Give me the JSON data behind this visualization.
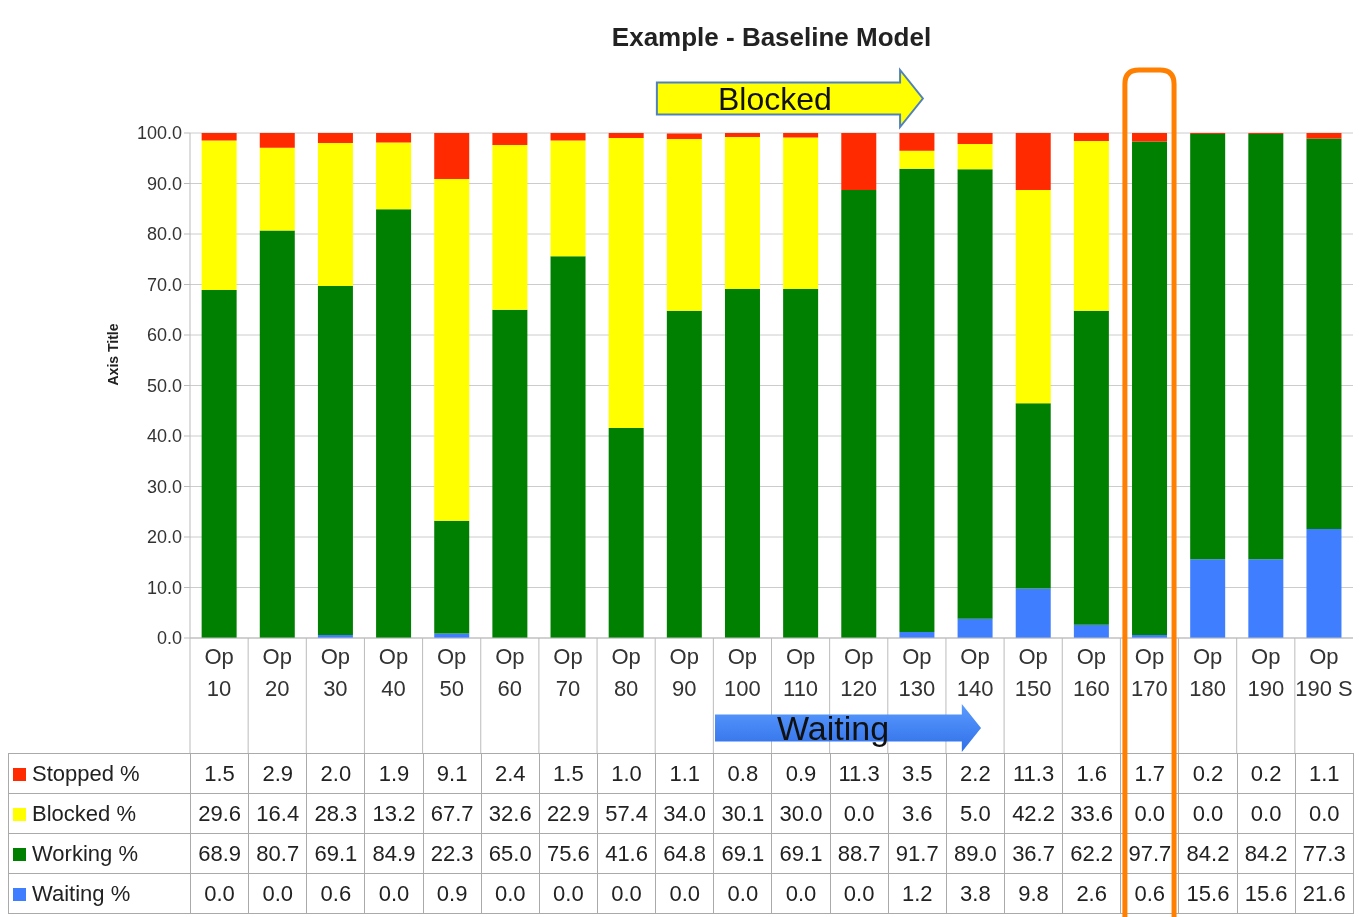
{
  "chart_data": {
    "type": "bar",
    "title": "Example - Baseline Model",
    "ylabel": "Axis Title",
    "stacked": true,
    "grid": "y",
    "legend": "bottom",
    "data_labels": true,
    "categories": [
      "Op 10",
      "Op 20",
      "Op 30",
      "Op 40",
      "Op 50",
      "Op 60",
      "Op 70",
      "Op 80",
      "Op 90",
      "Op 100",
      "Op 110",
      "Op 120",
      "Op 130",
      "Op 140",
      "Op 150",
      "Op 160",
      "Op 170",
      "Op 180",
      "Op 190",
      "Op 190 S"
    ],
    "ylim": [
      0,
      100
    ],
    "yticks": [
      {
        "value": 0,
        "label": "0.0"
      },
      {
        "value": 10,
        "label": "10.0"
      },
      {
        "value": 20,
        "label": "20.0"
      },
      {
        "value": 30,
        "label": "30.0"
      },
      {
        "value": 40,
        "label": "40.0"
      },
      {
        "value": 50,
        "label": "50.0"
      },
      {
        "value": 60,
        "label": "60.0"
      },
      {
        "value": 70,
        "label": "70.0"
      },
      {
        "value": 80,
        "label": "80.0"
      },
      {
        "value": 90,
        "label": "90.0"
      },
      {
        "value": 100,
        "label": "100.0"
      }
    ],
    "series": [
      {
        "name": "Waiting %",
        "color": "#3f7fff",
        "values": [
          0.0,
          0.0,
          0.6,
          0.0,
          0.9,
          0.0,
          0.0,
          0.0,
          0.0,
          0.0,
          0.0,
          0.0,
          1.2,
          3.8,
          9.8,
          2.6,
          0.6,
          15.6,
          15.6,
          21.6
        ],
        "value_labels": [
          "0.0",
          "0.0",
          "0.6",
          "0.0",
          "0.9",
          "0.0",
          "0.0",
          "0.0",
          "0.0",
          "0.0",
          "0.0",
          "0.0",
          "1.2",
          "3.8",
          "9.8",
          "2.6",
          "0.6",
          "15.6",
          "15.6",
          "21.6"
        ]
      },
      {
        "name": "Working %",
        "color": "#008000",
        "values": [
          68.9,
          80.7,
          69.1,
          84.9,
          22.3,
          65.0,
          75.6,
          41.6,
          64.8,
          69.1,
          69.1,
          88.7,
          91.7,
          89.0,
          36.7,
          62.2,
          97.7,
          84.2,
          84.2,
          77.3
        ],
        "value_labels": [
          "68.9",
          "80.7",
          "69.1",
          "84.9",
          "22.3",
          "65.0",
          "75.6",
          "41.6",
          "64.8",
          "69.1",
          "69.1",
          "88.7",
          "91.7",
          "89.0",
          "36.7",
          "62.2",
          "97.7",
          "84.2",
          "84.2",
          "77.3"
        ]
      },
      {
        "name": "Blocked %",
        "color": "#ffff00",
        "values": [
          29.6,
          16.4,
          28.3,
          13.2,
          67.7,
          32.6,
          22.9,
          57.4,
          34.0,
          30.1,
          30.0,
          0.0,
          3.6,
          5.0,
          42.2,
          33.6,
          0.0,
          0.0,
          0.0,
          0.0
        ],
        "value_labels": [
          "29.6",
          "16.4",
          "28.3",
          "13.2",
          "67.7",
          "32.6",
          "22.9",
          "57.4",
          "34.0",
          "30.1",
          "30.0",
          "0.0",
          "3.6",
          "5.0",
          "42.2",
          "33.6",
          "0.0",
          "0.0",
          "0.0",
          "0.0"
        ]
      },
      {
        "name": "Stopped %",
        "color": "#ff2a00",
        "values": [
          1.5,
          2.9,
          2.0,
          1.9,
          9.1,
          2.4,
          1.5,
          1.0,
          1.1,
          0.8,
          0.9,
          11.3,
          3.5,
          2.2,
          11.3,
          1.6,
          1.7,
          0.2,
          0.2,
          1.1
        ],
        "value_labels": [
          "1.5",
          "2.9",
          "2.0",
          "1.9",
          "9.1",
          "2.4",
          "1.5",
          "1.0",
          "1.1",
          "0.8",
          "0.9",
          "11.3",
          "3.5",
          "2.2",
          "11.3",
          "1.6",
          "1.7",
          "0.2",
          "0.2",
          "1.1"
        ]
      }
    ],
    "annotations": [
      "Blocked",
      "Waiting"
    ]
  }
}
